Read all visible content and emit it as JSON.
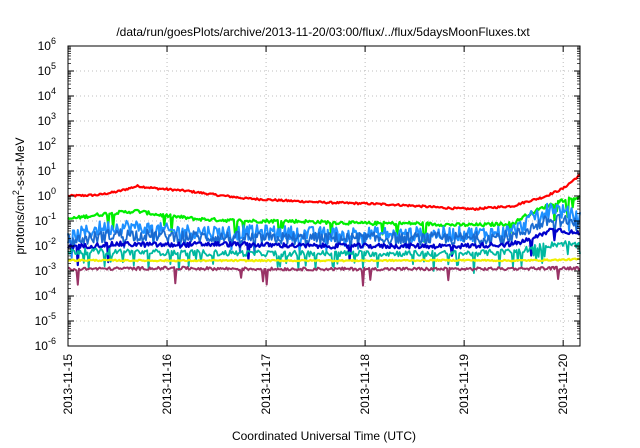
{
  "chart_data": {
    "type": "line",
    "title": "/data/run/goesPlots/archive/2013-11-20/03:00/flux/../flux/5daysMoonFluxes.txt",
    "xlabel": "Coordinated Universal Time (UTC)",
    "ylabel": {
      "prefix": "protons/cm",
      "sup": "2",
      "suffix": "-s-sr-MeV"
    },
    "yscale": "log",
    "ylim_exponents": [
      -6,
      6
    ],
    "y_tick_exponents": [
      -6,
      -5,
      -4,
      -3,
      -2,
      -1,
      0,
      1,
      2,
      3,
      4,
      5,
      6
    ],
    "y_tick_base": "10",
    "xlim_days": [
      0,
      5.17
    ],
    "x_ticks": [
      {
        "day": 0,
        "label": "2013-11-15"
      },
      {
        "day": 1,
        "label": "2013-11-16"
      },
      {
        "day": 2,
        "label": "2013-11-17"
      },
      {
        "day": 3,
        "label": "2013-11-18"
      },
      {
        "day": 4,
        "label": "2013-11-19"
      },
      {
        "day": 5,
        "label": "2013-11-20"
      }
    ],
    "grid": true,
    "legend": "none",
    "series": [
      {
        "color": "#ff0000",
        "width": 2.2,
        "noise": 0.04,
        "spikes": 0,
        "keys": [
          [
            0,
            1.0
          ],
          [
            0.3,
            1.1
          ],
          [
            0.5,
            1.5
          ],
          [
            0.7,
            2.5
          ],
          [
            0.9,
            2.0
          ],
          [
            1.2,
            1.6
          ],
          [
            1.5,
            1.1
          ],
          [
            1.8,
            0.8
          ],
          [
            2.2,
            0.65
          ],
          [
            2.6,
            0.55
          ],
          [
            3.0,
            0.5
          ],
          [
            3.3,
            0.45
          ],
          [
            3.6,
            0.38
          ],
          [
            3.9,
            0.32
          ],
          [
            4.1,
            0.3
          ],
          [
            4.3,
            0.35
          ],
          [
            4.5,
            0.4
          ],
          [
            4.6,
            0.55
          ],
          [
            4.8,
            0.9
          ],
          [
            5.0,
            2.0
          ],
          [
            5.17,
            7.0
          ]
        ]
      },
      {
        "color": "#00ee00",
        "width": 2.2,
        "noise": 0.07,
        "spikes": 0.04,
        "keys": [
          [
            0,
            0.12
          ],
          [
            0.4,
            0.2
          ],
          [
            0.7,
            0.25
          ],
          [
            0.9,
            0.18
          ],
          [
            1.3,
            0.12
          ],
          [
            1.8,
            0.1
          ],
          [
            2.2,
            0.1
          ],
          [
            2.6,
            0.09
          ],
          [
            3.0,
            0.08
          ],
          [
            3.5,
            0.08
          ],
          [
            3.9,
            0.07
          ],
          [
            4.2,
            0.07
          ],
          [
            4.5,
            0.08
          ],
          [
            4.6,
            0.15
          ],
          [
            4.8,
            0.35
          ],
          [
            5.0,
            0.7
          ],
          [
            5.17,
            0.9
          ]
        ]
      },
      {
        "color": "#1e90ff",
        "width": 2.0,
        "noise": 0.3,
        "spikes": 0.06,
        "keys": [
          [
            0,
            0.02
          ],
          [
            0.3,
            0.05
          ],
          [
            0.6,
            0.06
          ],
          [
            1.0,
            0.04
          ],
          [
            1.5,
            0.035
          ],
          [
            2.0,
            0.035
          ],
          [
            2.5,
            0.03
          ],
          [
            3.0,
            0.03
          ],
          [
            3.5,
            0.03
          ],
          [
            4.0,
            0.03
          ],
          [
            4.4,
            0.035
          ],
          [
            4.55,
            0.05
          ],
          [
            4.7,
            0.15
          ],
          [
            4.9,
            0.35
          ],
          [
            5.17,
            0.12
          ]
        ]
      },
      {
        "color": "#1a6bd0",
        "width": 1.8,
        "noise": 0.25,
        "spikes": 0.05,
        "keys": [
          [
            0,
            0.015
          ],
          [
            0.5,
            0.03
          ],
          [
            1.0,
            0.025
          ],
          [
            2.0,
            0.02
          ],
          [
            3.0,
            0.02
          ],
          [
            4.0,
            0.02
          ],
          [
            4.5,
            0.025
          ],
          [
            4.7,
            0.06
          ],
          [
            4.9,
            0.12
          ],
          [
            5.17,
            0.07
          ]
        ]
      },
      {
        "color": "#0000cc",
        "width": 2.2,
        "noise": 0.1,
        "spikes": 0.03,
        "keys": [
          [
            0,
            0.009
          ],
          [
            0.5,
            0.012
          ],
          [
            1.0,
            0.011
          ],
          [
            1.5,
            0.012
          ],
          [
            2.0,
            0.011
          ],
          [
            2.5,
            0.01
          ],
          [
            3.0,
            0.01
          ],
          [
            3.5,
            0.01
          ],
          [
            4.0,
            0.01
          ],
          [
            4.5,
            0.012
          ],
          [
            4.7,
            0.02
          ],
          [
            4.9,
            0.05
          ],
          [
            5.17,
            0.03
          ]
        ]
      },
      {
        "color": "#00b8a0",
        "width": 1.8,
        "noise": 0.12,
        "spikes": 0.08,
        "keys": [
          [
            0,
            0.006
          ],
          [
            0.5,
            0.006
          ],
          [
            1.0,
            0.0055
          ],
          [
            2.0,
            0.005
          ],
          [
            3.0,
            0.005
          ],
          [
            4.0,
            0.005
          ],
          [
            4.5,
            0.006
          ],
          [
            4.8,
            0.01
          ],
          [
            5.0,
            0.013
          ],
          [
            5.17,
            0.01
          ]
        ]
      },
      {
        "color": "#f0f000",
        "width": 2.2,
        "noise": 0.03,
        "spikes": 0,
        "keys": [
          [
            0,
            0.0027
          ],
          [
            1.0,
            0.0026
          ],
          [
            2.0,
            0.0026
          ],
          [
            3.0,
            0.0026
          ],
          [
            4.0,
            0.0027
          ],
          [
            4.5,
            0.0026
          ],
          [
            5.0,
            0.0028
          ],
          [
            5.17,
            0.003
          ]
        ]
      },
      {
        "color": "#993366",
        "width": 2.0,
        "noise": 0.06,
        "spikes": 0.02,
        "keys": [
          [
            0,
            0.0012
          ],
          [
            1.0,
            0.0013
          ],
          [
            2.0,
            0.0012
          ],
          [
            3.0,
            0.0012
          ],
          [
            4.0,
            0.0012
          ],
          [
            5.0,
            0.0013
          ],
          [
            5.17,
            0.0013
          ]
        ]
      }
    ]
  }
}
